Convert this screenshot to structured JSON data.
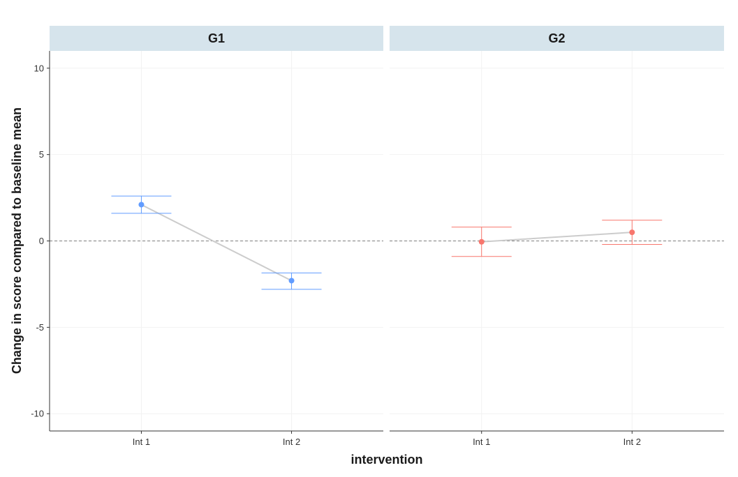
{
  "chart_data": {
    "type": "scatter",
    "xlabel": "intervention",
    "ylabel": "Change in score compared to baseline mean",
    "categories": [
      "Int 1",
      "Int 2"
    ],
    "ylim": [
      -11,
      11
    ],
    "yticks": [
      10,
      5,
      0,
      -5,
      -10
    ],
    "ytick_labels": [
      "10",
      "5",
      "0",
      "-5",
      "-10"
    ],
    "reference_line": 0,
    "grid": true,
    "legend": "none",
    "facets": [
      {
        "name": "G1",
        "color": "#619CFF",
        "points": [
          {
            "x": "Int 1",
            "y": 2.1,
            "ymin": 1.6,
            "ymax": 2.6
          },
          {
            "x": "Int 2",
            "y": -2.3,
            "ymin": -2.8,
            "ymax": -1.85
          }
        ]
      },
      {
        "name": "G2",
        "color": "#F8766D",
        "points": [
          {
            "x": "Int 1",
            "y": -0.05,
            "ymin": -0.9,
            "ymax": 0.8
          },
          {
            "x": "Int 2",
            "y": 0.5,
            "ymin": -0.2,
            "ymax": 1.2
          }
        ]
      }
    ]
  }
}
